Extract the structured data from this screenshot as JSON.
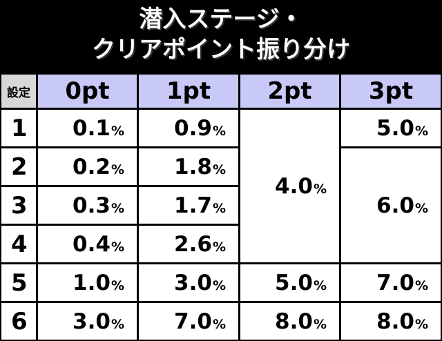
{
  "title": {
    "line1": "潜入ステージ・",
    "line2": "クリアポイント振り分け"
  },
  "table": {
    "corner": "設定",
    "columns": [
      "0pt",
      "1pt",
      "2pt",
      "3pt"
    ],
    "rows": [
      "1",
      "2",
      "3",
      "4",
      "5",
      "6"
    ],
    "pt0": [
      "0.1",
      "0.2",
      "0.3",
      "0.4",
      "1.0",
      "3.0"
    ],
    "pt1": [
      "0.9",
      "1.8",
      "1.7",
      "2.6",
      "3.0",
      "7.0"
    ],
    "pt2": {
      "settings_1_4": "4.0",
      "setting_5": "5.0",
      "setting_6": "8.0"
    },
    "pt3": {
      "setting_1": "5.0",
      "settings_2_4": "6.0",
      "setting_5": "7.0",
      "setting_6": "8.0"
    },
    "unit": "%"
  },
  "colors": {
    "background": "#000000",
    "header": "#c9c9f7",
    "corner": "#d8d8d8",
    "cell": "#ffffff"
  }
}
